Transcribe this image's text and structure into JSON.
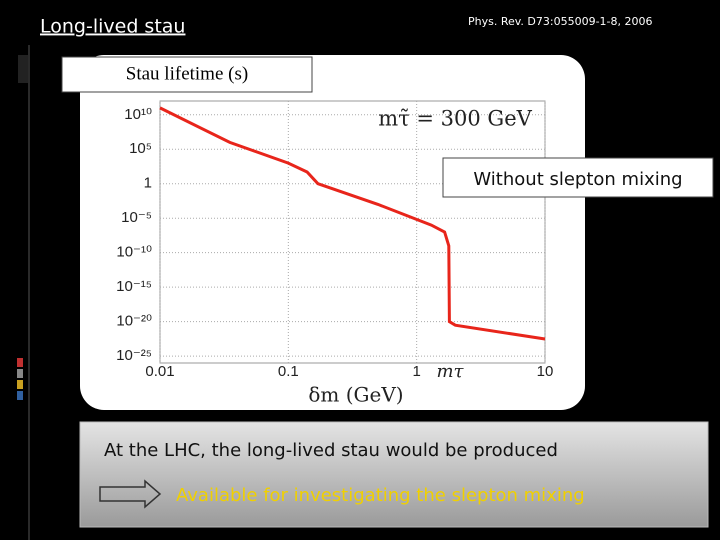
{
  "slide": {
    "title": "Long-lived stau",
    "reference": "Phys. Rev. D73:055009-1-8, 2006",
    "callout": "Without slepton mixing",
    "text": "At the LHC, the long-lived stau would be produced",
    "conclusion": "Available for investigating the slepton mixing"
  },
  "chart_data": {
    "type": "line",
    "title": "Stau lifetime (s)",
    "x_label": "δm (GeV)",
    "annotation": "mτ̃ = 300 GeV",
    "marker_label": "mτ",
    "x": [
      0.01,
      0.035,
      0.1,
      0.14,
      0.17,
      0.5,
      1.3,
      1.65,
      1.78,
      1.8,
      2,
      10
    ],
    "series": [
      {
        "color": "#e8251b",
        "values": [
          100000000000.0,
          1000000.0,
          1000.0,
          50,
          1,
          0.001,
          1e-06,
          1e-07,
          1e-09,
          1e-20,
          3e-21,
          3e-23
        ]
      }
    ],
    "log_x": true,
    "log_y": true,
    "grid": true,
    "xlim": [
      0.01,
      10
    ],
    "xticks": [
      0.01,
      0.1,
      1,
      10
    ],
    "ylim": [
      1e-26,
      1000000000000.0
    ],
    "yticks": [
      {
        "value": 10000000000.0,
        "label": "10¹⁰"
      },
      {
        "value": 100000.0,
        "label": "10⁵"
      },
      1,
      {
        "value": 1e-05,
        "label": "10⁻⁵"
      },
      {
        "value": 1e-10,
        "label": "10⁻¹⁰"
      },
      {
        "value": 1e-15,
        "label": "10⁻¹⁵"
      },
      {
        "value": 1e-20,
        "label": "10⁻²⁰"
      },
      {
        "value": 1e-25,
        "label": "10⁻²⁵"
      }
    ]
  }
}
